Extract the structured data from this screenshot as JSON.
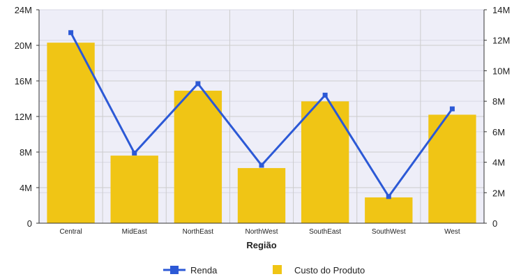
{
  "colors": {
    "plot_bg": "#eeeef8",
    "grid": "#cccccc",
    "bar": "#f0c515",
    "line": "#2c59d6",
    "axis": "#333333",
    "text": "#222222"
  },
  "chart_data": {
    "type": "bar+line",
    "categories": [
      "Central",
      "MidEast",
      "NorthEast",
      "NorthWest",
      "SouthEast",
      "SouthWest",
      "West"
    ],
    "xlabel": "Região",
    "left_axis": {
      "ylim": [
        0,
        24000000
      ],
      "ticks": [
        0,
        4000000,
        8000000,
        12000000,
        16000000,
        20000000,
        24000000
      ],
      "tick_labels": [
        "0",
        "4M",
        "8M",
        "12M",
        "16M",
        "20M",
        "24M"
      ]
    },
    "right_axis": {
      "ylim": [
        0,
        14000000
      ],
      "ticks": [
        0,
        2000000,
        4000000,
        6000000,
        8000000,
        10000000,
        12000000,
        14000000
      ],
      "tick_labels": [
        "0",
        "2M",
        "4M",
        "6M",
        "8M",
        "10M",
        "12M",
        "14M"
      ]
    },
    "series": [
      {
        "name": "Custo do Produto",
        "type": "bar",
        "axis": "left",
        "values": [
          20300000,
          7600000,
          14900000,
          6200000,
          13700000,
          2900000,
          12200000
        ]
      },
      {
        "name": "Renda",
        "type": "line",
        "axis": "right",
        "values": [
          12500000,
          4600000,
          9150000,
          3800000,
          8400000,
          1750000,
          7500000
        ]
      }
    ],
    "grid": true,
    "legend_position": "bottom"
  }
}
